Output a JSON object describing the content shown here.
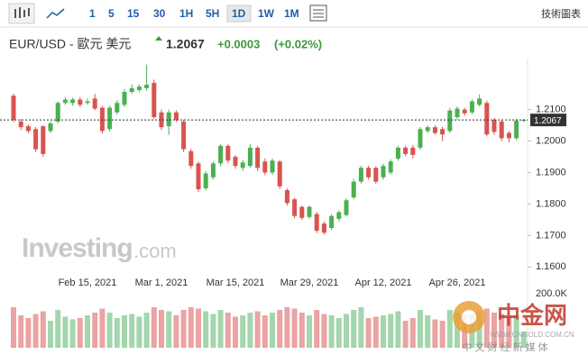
{
  "toolbar": {
    "intervals": [
      "1",
      "5",
      "15",
      "30",
      "1H",
      "5H",
      "1D",
      "1W",
      "1M"
    ],
    "active_interval": "1D",
    "chart_button": "技術圖表"
  },
  "chart_data": {
    "type": "candlestick",
    "title": "EUR/USD - 歐元 美元",
    "quote": {
      "price": 1.2067,
      "change": "+0.0003",
      "change_percent": "(+0.02%)"
    },
    "watermark": {
      "brand": "Investing",
      "suffix": ".com"
    },
    "logo": {
      "name": "中金网",
      "tagline": "中 文 财 经 新 媒 体",
      "url": "WWW.CNGOLD.COM.CN"
    },
    "up_color": "#4caf50",
    "down_color": "#d9534f",
    "categories": [
      null,
      null,
      null,
      null,
      null,
      null,
      null,
      null,
      null,
      null,
      "Feb 15, 2021",
      null,
      null,
      null,
      null,
      null,
      null,
      null,
      null,
      null,
      "Mar 1, 2021",
      null,
      null,
      null,
      null,
      null,
      null,
      null,
      null,
      null,
      "Mar 15, 2021",
      null,
      null,
      null,
      null,
      null,
      null,
      null,
      null,
      null,
      "Mar 29, 2021",
      null,
      null,
      null,
      null,
      null,
      null,
      null,
      null,
      null,
      "Apr 12, 2021",
      null,
      null,
      null,
      null,
      null,
      null,
      null,
      null,
      null,
      "Apr 26, 2021",
      null,
      null,
      null,
      null,
      null,
      null,
      null,
      null,
      null
    ],
    "open": [
      1.2144,
      1.2062,
      1.2047,
      1.2038,
      1.2047,
      1.2032,
      1.2062,
      1.2121,
      1.2121,
      1.2132,
      1.2121,
      1.2135,
      1.2106,
      1.2038,
      1.2091,
      1.2115,
      1.2156,
      1.2162,
      1.2168,
      1.2185,
      1.2091,
      1.2047,
      1.2091,
      1.2062,
      1.1968,
      1.1929,
      1.185,
      1.1885,
      1.1929,
      1.1985,
      1.195,
      1.1915,
      1.1921,
      1.1979,
      1.1935,
      1.19,
      1.1935,
      1.1844,
      1.1815,
      1.1791,
      1.1759,
      1.1768,
      1.1738,
      1.1724,
      1.1753,
      1.1765,
      1.1821,
      1.1871,
      1.1915,
      1.1915,
      1.1885,
      1.19,
      1.1944,
      1.1979,
      1.1979,
      1.1979,
      1.2032,
      1.2044,
      1.2038,
      1.2032,
      1.2076,
      1.21,
      1.2091,
      1.2115,
      1.2121,
      1.2068,
      1.2062,
      1.2026,
      1.2009,
      1.2065
    ],
    "high": [
      1.215,
      1.207,
      1.2052,
      1.2045,
      1.205,
      1.2062,
      1.2126,
      1.214,
      1.2138,
      1.214,
      1.2135,
      1.215,
      1.2112,
      1.2112,
      1.213,
      1.2165,
      1.218,
      1.218,
      1.2243,
      1.2195,
      1.21,
      1.21,
      1.2098,
      1.2068,
      1.1975,
      1.1935,
      1.1905,
      1.1935,
      1.199,
      1.199,
      1.1955,
      1.194,
      1.199,
      1.1985,
      1.1945,
      1.1945,
      1.194,
      1.185,
      1.182,
      1.1795,
      1.1795,
      1.1775,
      1.1745,
      1.1768,
      1.178,
      1.1818,
      1.188,
      1.1922,
      1.1922,
      1.192,
      1.1928,
      1.1942,
      1.1985,
      1.1985,
      1.1988,
      1.2045,
      1.205,
      1.205,
      1.2045,
      1.2105,
      1.211,
      1.2106,
      1.2132,
      1.2148,
      1.2128,
      1.2074,
      1.2068,
      1.2032,
      1.207,
      1.207
    ],
    "low": [
      1.206,
      1.2035,
      1.2025,
      1.1965,
      1.195,
      1.2026,
      1.2056,
      1.2115,
      1.2112,
      1.2108,
      1.2115,
      1.2098,
      1.2024,
      1.203,
      1.2085,
      1.2108,
      1.215,
      1.2155,
      1.216,
      1.207,
      1.2035,
      1.202,
      1.206,
      1.1965,
      1.1912,
      1.1838,
      1.1843,
      1.1878,
      1.192,
      1.193,
      1.1912,
      1.1905,
      1.1915,
      1.1905,
      1.1892,
      1.1893,
      1.1848,
      1.1795,
      1.1755,
      1.175,
      1.1753,
      1.1708,
      1.1703,
      1.1717,
      1.1745,
      1.176,
      1.1815,
      1.1865,
      1.1878,
      1.1865,
      1.1878,
      1.1893,
      1.1938,
      1.1952,
      1.1945,
      1.1972,
      1.2026,
      1.202,
      1.2,
      1.2026,
      1.2068,
      1.208,
      1.2085,
      1.211,
      1.2015,
      1.202,
      1.2,
      1.1995,
      1.2003,
      1.206
    ],
    "close": [
      1.2068,
      1.2044,
      1.2032,
      1.1974,
      1.1959,
      1.2056,
      1.2121,
      1.2132,
      1.2132,
      1.2115,
      1.2126,
      1.2103,
      1.2032,
      1.2106,
      1.2121,
      1.2156,
      1.2168,
      1.2173,
      1.2179,
      1.2076,
      1.2044,
      1.2091,
      1.2068,
      1.1974,
      1.1921,
      1.1847,
      1.1897,
      1.1929,
      1.1985,
      1.1938,
      1.1921,
      1.1932,
      1.1979,
      1.1915,
      1.19,
      1.1938,
      1.1856,
      1.1803,
      1.1762,
      1.1756,
      1.1791,
      1.1715,
      1.1709,
      1.1762,
      1.1774,
      1.1812,
      1.1871,
      1.1915,
      1.1885,
      1.1871,
      1.1921,
      1.1935,
      1.1979,
      1.1959,
      1.1956,
      1.2038,
      1.2044,
      1.2026,
      1.2021,
      1.2097,
      1.2103,
      1.2088,
      1.2126,
      1.2135,
      1.2021,
      1.2029,
      1.2009,
      1.2009,
      1.2065,
      1.2067
    ],
    "ylim": [
      1.1538,
      1.2262
    ],
    "yticks": [
      {
        "value": 1.16,
        "label": "1.1600"
      },
      {
        "value": 1.17,
        "label": "1.1700"
      },
      {
        "value": 1.18,
        "label": "1.1800"
      },
      {
        "value": 1.19,
        "label": "1.1900"
      },
      {
        "value": 1.2,
        "label": "1.2000"
      },
      {
        "value": 1.21,
        "label": "1.2100"
      }
    ],
    "volume": {
      "values": [
        150000,
        120000,
        110000,
        125000,
        135000,
        100000,
        140000,
        115000,
        105000,
        110000,
        120000,
        130000,
        145000,
        130000,
        110000,
        120000,
        125000,
        115000,
        130000,
        150000,
        140000,
        135000,
        120000,
        140000,
        150000,
        145000,
        135000,
        125000,
        140000,
        130000,
        115000,
        120000,
        130000,
        135000,
        120000,
        130000,
        140000,
        150000,
        145000,
        130000,
        120000,
        140000,
        125000,
        120000,
        110000,
        125000,
        140000,
        150000,
        110000,
        115000,
        120000,
        125000,
        135000,
        100000,
        110000,
        140000,
        120000,
        105000,
        100000,
        140000,
        130000,
        120000,
        125000,
        135000,
        145000,
        130000,
        125000,
        115000,
        120000,
        60000
      ],
      "up_color": "#a3d6ad",
      "down_color": "#eba3a3",
      "ylim": [
        0,
        200000
      ],
      "yticks": [
        {
          "value": 200000,
          "label": "200.0K"
        }
      ]
    }
  }
}
